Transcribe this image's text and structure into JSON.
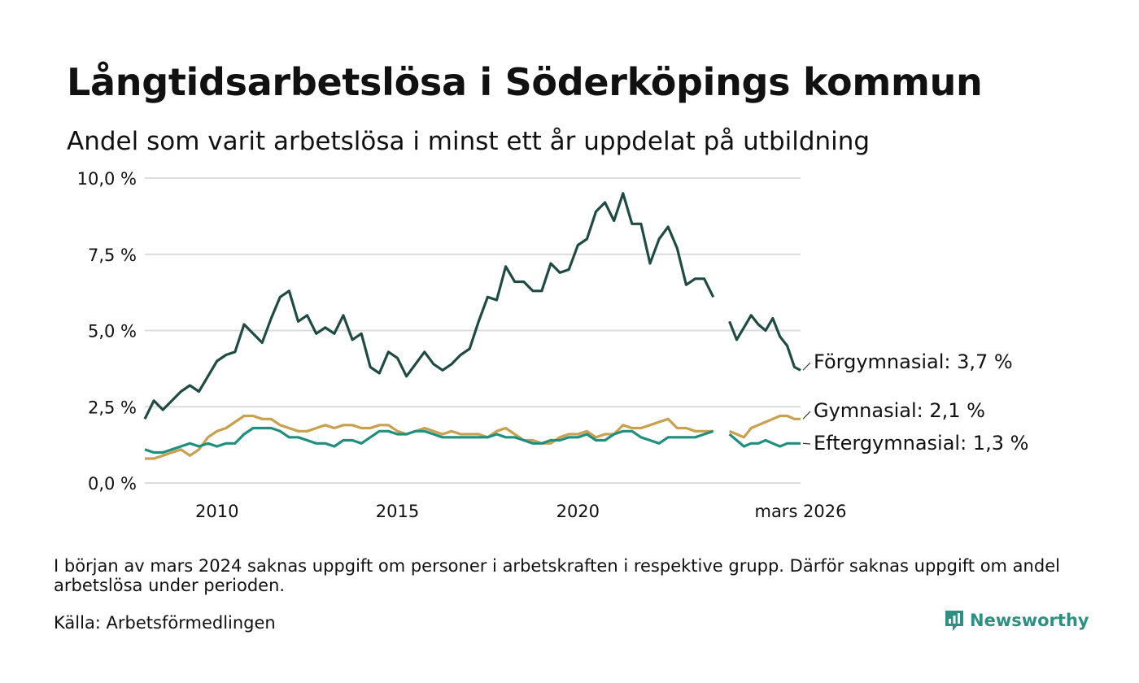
{
  "header": {
    "title": "Långtidsarbetslösa i Söderköpings kommun",
    "subtitle": "Andel som varit arbetslösa i minst ett år uppdelat på utbildning"
  },
  "footer": {
    "note": "I början av mars 2024 saknas uppgift om personer i arbetskraften i respektive grupp. Därför saknas uppgift om andel arbetslösa under perioden.",
    "source": "Källa: Arbetsförmedlingen",
    "brand": "Newsworthy"
  },
  "chart_data": {
    "type": "line",
    "title": "Långtidsarbetslösa i Söderköpings kommun",
    "xlabel": "",
    "ylabel": "",
    "xlim": [
      2008.0,
      2026.17
    ],
    "ylim": [
      0,
      10
    ],
    "y_ticks": [
      0,
      2.5,
      5,
      7.5,
      10
    ],
    "y_tick_labels": [
      "0,0 %",
      "2,5 %",
      "5,0 %",
      "7,5 %",
      "10,0 %"
    ],
    "x_ticks": [
      2010,
      2015,
      2020,
      2026.17
    ],
    "x_tick_labels": [
      "2010",
      "2015",
      "2020",
      "mars 2026"
    ],
    "gap": [
      2023.75,
      2024.2
    ],
    "series": [
      {
        "name": "Förgymnasial",
        "end_label": "Förgymnasial: 3,7 %",
        "color": "#1f4b44",
        "x": [
          2008.0,
          2008.25,
          2008.5,
          2008.75,
          2009.0,
          2009.25,
          2009.5,
          2009.75,
          2010.0,
          2010.25,
          2010.5,
          2010.75,
          2011.0,
          2011.25,
          2011.5,
          2011.75,
          2012.0,
          2012.25,
          2012.5,
          2012.75,
          2013.0,
          2013.25,
          2013.5,
          2013.75,
          2014.0,
          2014.25,
          2014.5,
          2014.75,
          2015.0,
          2015.25,
          2015.5,
          2015.75,
          2016.0,
          2016.25,
          2016.5,
          2016.75,
          2017.0,
          2017.25,
          2017.5,
          2017.75,
          2018.0,
          2018.25,
          2018.5,
          2018.75,
          2019.0,
          2019.25,
          2019.5,
          2019.75,
          2020.0,
          2020.25,
          2020.5,
          2020.75,
          2021.0,
          2021.25,
          2021.5,
          2021.75,
          2022.0,
          2022.25,
          2022.5,
          2022.75,
          2023.0,
          2023.25,
          2023.5,
          2023.75,
          2024.2,
          2024.4,
          2024.6,
          2024.8,
          2025.0,
          2025.2,
          2025.4,
          2025.6,
          2025.8,
          2026.0,
          2026.17
        ],
        "values": [
          2.1,
          2.7,
          2.4,
          2.7,
          3.0,
          3.2,
          3.0,
          3.5,
          4.0,
          4.2,
          4.3,
          5.2,
          4.9,
          4.6,
          5.4,
          6.1,
          6.3,
          5.3,
          5.5,
          4.9,
          5.1,
          4.9,
          5.5,
          4.7,
          4.9,
          3.8,
          3.6,
          4.3,
          4.1,
          3.5,
          3.9,
          4.3,
          3.9,
          3.7,
          3.9,
          4.2,
          4.4,
          5.3,
          6.1,
          6.0,
          7.1,
          6.6,
          6.6,
          6.3,
          6.3,
          7.2,
          6.9,
          7.0,
          7.8,
          8.0,
          8.9,
          9.2,
          8.6,
          9.5,
          8.5,
          8.5,
          7.2,
          8.0,
          8.4,
          7.7,
          6.5,
          6.7,
          6.7,
          6.1,
          5.3,
          4.7,
          5.1,
          5.5,
          5.2,
          5.0,
          5.4,
          4.8,
          4.5,
          3.8,
          3.7
        ]
      },
      {
        "name": "Gymnasial",
        "end_label": "Gymnasial: 2,1 %",
        "color": "#c9a04e",
        "x": [
          2008.0,
          2008.25,
          2008.5,
          2008.75,
          2009.0,
          2009.25,
          2009.5,
          2009.75,
          2010.0,
          2010.25,
          2010.5,
          2010.75,
          2011.0,
          2011.25,
          2011.5,
          2011.75,
          2012.0,
          2012.25,
          2012.5,
          2012.75,
          2013.0,
          2013.25,
          2013.5,
          2013.75,
          2014.0,
          2014.25,
          2014.5,
          2014.75,
          2015.0,
          2015.25,
          2015.5,
          2015.75,
          2016.0,
          2016.25,
          2016.5,
          2016.75,
          2017.0,
          2017.25,
          2017.5,
          2017.75,
          2018.0,
          2018.25,
          2018.5,
          2018.75,
          2019.0,
          2019.25,
          2019.5,
          2019.75,
          2020.0,
          2020.25,
          2020.5,
          2020.75,
          2021.0,
          2021.25,
          2021.5,
          2021.75,
          2022.0,
          2022.25,
          2022.5,
          2022.75,
          2023.0,
          2023.25,
          2023.5,
          2023.75,
          2024.2,
          2024.4,
          2024.6,
          2024.8,
          2025.0,
          2025.2,
          2025.4,
          2025.6,
          2025.8,
          2026.0,
          2026.17
        ],
        "values": [
          0.8,
          0.8,
          0.9,
          1.0,
          1.1,
          0.9,
          1.1,
          1.5,
          1.7,
          1.8,
          2.0,
          2.2,
          2.2,
          2.1,
          2.1,
          1.9,
          1.8,
          1.7,
          1.7,
          1.8,
          1.9,
          1.8,
          1.9,
          1.9,
          1.8,
          1.8,
          1.9,
          1.9,
          1.7,
          1.6,
          1.7,
          1.8,
          1.7,
          1.6,
          1.7,
          1.6,
          1.6,
          1.6,
          1.5,
          1.7,
          1.8,
          1.6,
          1.4,
          1.4,
          1.3,
          1.3,
          1.5,
          1.6,
          1.6,
          1.7,
          1.5,
          1.6,
          1.6,
          1.9,
          1.8,
          1.8,
          1.9,
          2.0,
          2.1,
          1.8,
          1.8,
          1.7,
          1.7,
          1.7,
          1.7,
          1.6,
          1.5,
          1.8,
          1.9,
          2.0,
          2.1,
          2.2,
          2.2,
          2.1,
          2.1
        ]
      },
      {
        "name": "Eftergymnasial",
        "end_label": "Eftergymnasial: 1,3 %",
        "color": "#1f8f7e",
        "x": [
          2008.0,
          2008.25,
          2008.5,
          2008.75,
          2009.0,
          2009.25,
          2009.5,
          2009.75,
          2010.0,
          2010.25,
          2010.5,
          2010.75,
          2011.0,
          2011.25,
          2011.5,
          2011.75,
          2012.0,
          2012.25,
          2012.5,
          2012.75,
          2013.0,
          2013.25,
          2013.5,
          2013.75,
          2014.0,
          2014.25,
          2014.5,
          2014.75,
          2015.0,
          2015.25,
          2015.5,
          2015.75,
          2016.0,
          2016.25,
          2016.5,
          2016.75,
          2017.0,
          2017.25,
          2017.5,
          2017.75,
          2018.0,
          2018.25,
          2018.5,
          2018.75,
          2019.0,
          2019.25,
          2019.5,
          2019.75,
          2020.0,
          2020.25,
          2020.5,
          2020.75,
          2021.0,
          2021.25,
          2021.5,
          2021.75,
          2022.0,
          2022.25,
          2022.5,
          2022.75,
          2023.0,
          2023.25,
          2023.5,
          2023.75,
          2024.2,
          2024.4,
          2024.6,
          2024.8,
          2025.0,
          2025.2,
          2025.4,
          2025.6,
          2025.8,
          2026.0,
          2026.17
        ],
        "values": [
          1.1,
          1.0,
          1.0,
          1.1,
          1.2,
          1.3,
          1.2,
          1.3,
          1.2,
          1.3,
          1.3,
          1.6,
          1.8,
          1.8,
          1.8,
          1.7,
          1.5,
          1.5,
          1.4,
          1.3,
          1.3,
          1.2,
          1.4,
          1.4,
          1.3,
          1.5,
          1.7,
          1.7,
          1.6,
          1.6,
          1.7,
          1.7,
          1.6,
          1.5,
          1.5,
          1.5,
          1.5,
          1.5,
          1.5,
          1.6,
          1.5,
          1.5,
          1.4,
          1.3,
          1.3,
          1.4,
          1.4,
          1.5,
          1.5,
          1.6,
          1.4,
          1.4,
          1.6,
          1.7,
          1.7,
          1.5,
          1.4,
          1.3,
          1.5,
          1.5,
          1.5,
          1.5,
          1.6,
          1.7,
          1.6,
          1.4,
          1.2,
          1.3,
          1.3,
          1.4,
          1.3,
          1.2,
          1.3,
          1.3,
          1.3
        ]
      }
    ]
  }
}
